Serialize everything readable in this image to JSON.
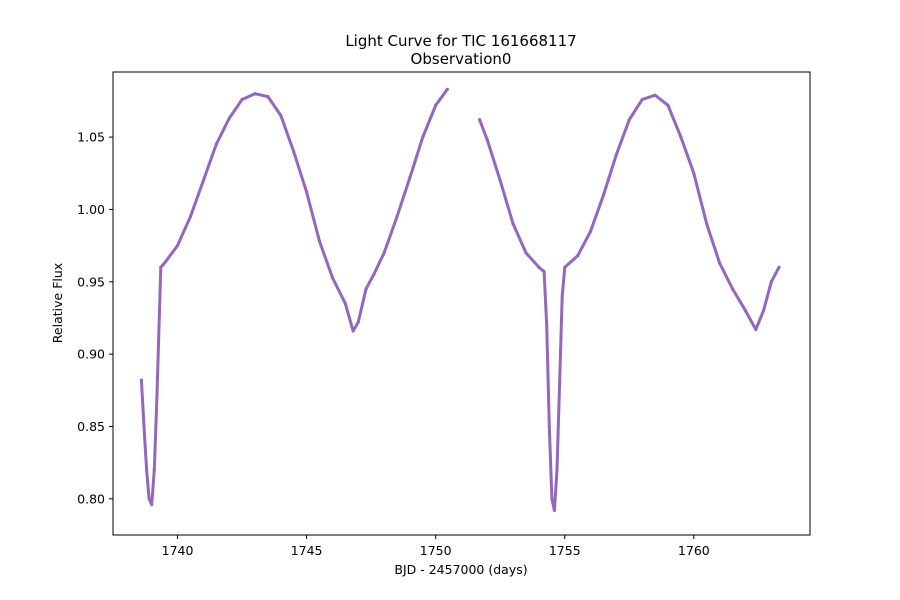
{
  "chart_data": {
    "type": "scatter",
    "title": "Light Curve for TIC 161668117",
    "subtitle": "Observation0",
    "xlabel": "BJD - 2457000 (days)",
    "ylabel": "Relative Flux",
    "xlim": [
      1737.5,
      1764.5
    ],
    "ylim": [
      0.775,
      1.095
    ],
    "xticks": [
      1740,
      1745,
      1750,
      1755,
      1760
    ],
    "yticks": [
      0.8,
      0.85,
      0.9,
      0.95,
      1.0,
      1.05
    ],
    "xtick_labels": [
      "1740",
      "1745",
      "1750",
      "1755",
      "1760"
    ],
    "ytick_labels": [
      "0.80",
      "0.85",
      "0.90",
      "0.95",
      "1.00",
      "1.05"
    ],
    "grid": false,
    "color": "#9467bd",
    "series": [
      {
        "x": [
          1738.6,
          1738.7,
          1738.8,
          1738.9,
          1739.0,
          1739.1,
          1739.2,
          1739.3,
          1739.35,
          1739.5,
          1740.0,
          1740.5,
          1741.0,
          1741.5,
          1742.0,
          1742.5,
          1743.0,
          1743.5,
          1744.0,
          1744.5,
          1745.0,
          1745.5,
          1746.0,
          1746.5,
          1746.8,
          1747.0,
          1747.3,
          1747.6,
          1748.0,
          1748.5,
          1749.0,
          1749.5,
          1750.0,
          1750.45
        ],
        "y": [
          0.882,
          0.85,
          0.82,
          0.8,
          0.796,
          0.82,
          0.87,
          0.93,
          0.96,
          0.963,
          0.975,
          0.995,
          1.02,
          1.045,
          1.063,
          1.076,
          1.08,
          1.078,
          1.065,
          1.04,
          1.012,
          0.978,
          0.953,
          0.935,
          0.916,
          0.922,
          0.945,
          0.955,
          0.97,
          0.995,
          1.022,
          1.05,
          1.072,
          1.083
        ]
      },
      {
        "x": [
          1751.7,
          1752.0,
          1752.5,
          1753.0,
          1753.5,
          1754.0,
          1754.2,
          1754.3,
          1754.4,
          1754.5,
          1754.6,
          1754.7,
          1754.8,
          1754.9,
          1755.0,
          1755.5,
          1756.0,
          1756.5,
          1757.0,
          1757.5,
          1758.0,
          1758.5,
          1759.0,
          1759.5,
          1760.0,
          1760.5,
          1761.0,
          1761.5,
          1762.0,
          1762.4,
          1762.7,
          1763.0,
          1763.3
        ],
        "y": [
          1.062,
          1.048,
          1.02,
          0.99,
          0.97,
          0.96,
          0.957,
          0.92,
          0.85,
          0.8,
          0.792,
          0.82,
          0.88,
          0.94,
          0.96,
          0.968,
          0.985,
          1.01,
          1.038,
          1.062,
          1.076,
          1.079,
          1.072,
          1.05,
          1.025,
          0.99,
          0.963,
          0.945,
          0.93,
          0.917,
          0.93,
          0.95,
          0.96
        ]
      }
    ]
  }
}
